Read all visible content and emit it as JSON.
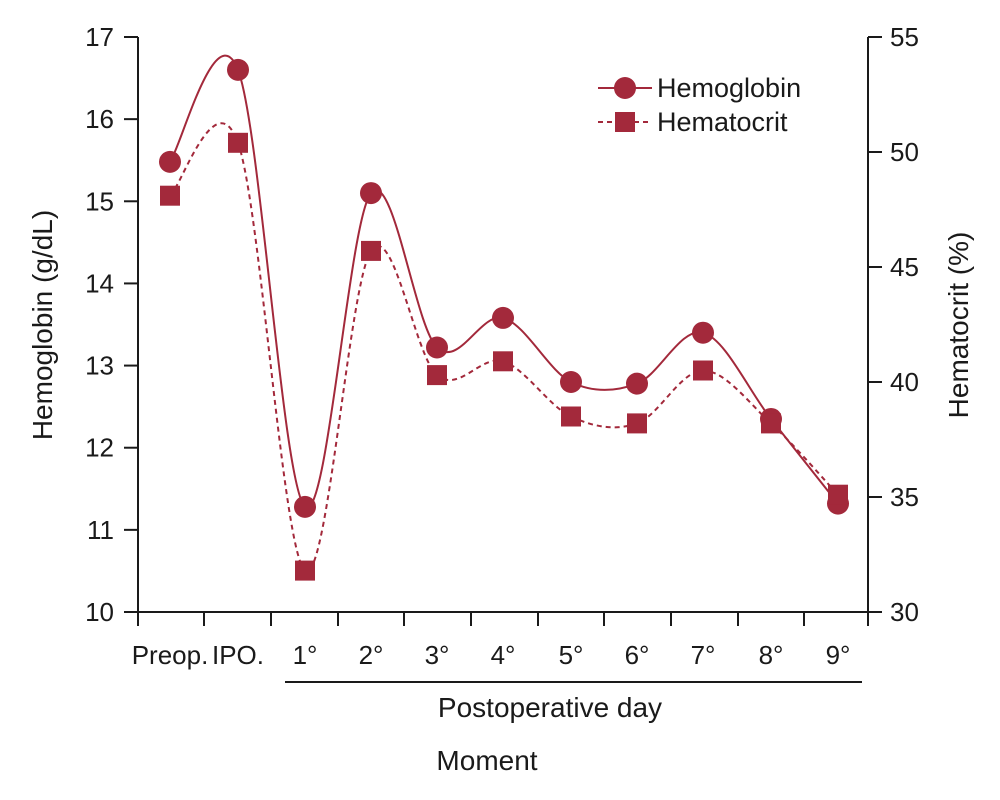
{
  "chart_data": {
    "type": "line",
    "categories": [
      "Preop.",
      "IPO.",
      "1°",
      "2°",
      "3°",
      "4°",
      "5°",
      "6°",
      "7°",
      "8°",
      "9°"
    ],
    "series": [
      {
        "name": "Hemoglobin",
        "axis": "left",
        "marker": "circle",
        "line": "solid",
        "values": [
          15.48,
          16.6,
          11.28,
          15.1,
          13.22,
          13.58,
          12.8,
          12.78,
          13.4,
          12.35,
          11.32
        ]
      },
      {
        "name": "Hematocrit",
        "axis": "right",
        "marker": "square",
        "line": "dashed",
        "values": [
          48.1,
          50.4,
          31.8,
          45.7,
          40.3,
          40.9,
          38.5,
          38.2,
          40.5,
          38.2,
          35.1
        ]
      }
    ],
    "title": "",
    "xlabel": "Moment",
    "x_sublabel": "Postoperative day",
    "ylabel": "Hemoglobin (g/dL)",
    "y2label": "Hematocrit (%)",
    "ylim": [
      10,
      17
    ],
    "y2lim": [
      30,
      55
    ],
    "yticks": [
      10,
      11,
      12,
      13,
      14,
      15,
      16,
      17
    ],
    "y2ticks": [
      30,
      35,
      40,
      45,
      50,
      55
    ],
    "grid": false,
    "legend_position": "top-right",
    "color": "#a3293b"
  }
}
